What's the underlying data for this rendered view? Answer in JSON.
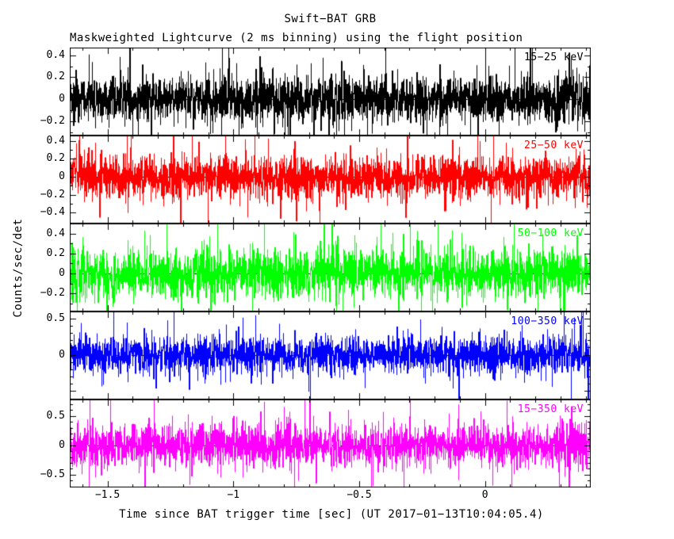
{
  "chart_data": {
    "type": "line",
    "title": "Swift−BAT GRB",
    "subtitle": "Maskweighted Lightcurve (2 ms binning) using the flight position",
    "xlabel": "Time since BAT trigger time [sec] (UT 2017−01−13T10:04:05.4)",
    "ylabel": "Counts/sec/det",
    "description": "Five stacked panels of mask-weighted Swift-BAT count-rate noise around the trigger time; zero-mean fluctuations in each energy band, dashed line at zero, no visible burst structure.",
    "bin_seconds": 0.002,
    "grid": false,
    "zero_line": "dashed",
    "xlim": [
      -1.65,
      0.42
    ],
    "x_minor_step": 0.1,
    "x_ticks": {
      "values": [
        -1.5,
        -1,
        -0.5,
        0
      ],
      "labels": [
        "−1.5",
        "−1",
        "−0.5",
        "0"
      ]
    },
    "panels": [
      {
        "label": "15−25 keV",
        "color": "#000000",
        "ylim": [
          -0.33,
          0.47
        ],
        "mean": 0,
        "noise_sigma": 0.11,
        "yticks": {
          "values": [
            0.4,
            0.2,
            0,
            -0.2
          ],
          "labels": [
            "0.4",
            "0.2",
            "0",
            "−0.2"
          ]
        }
      },
      {
        "label": "25−50 keV",
        "color": "#ff0000",
        "ylim": [
          -0.52,
          0.46
        ],
        "mean": 0,
        "noise_sigma": 0.12,
        "yticks": {
          "values": [
            0.4,
            0.2,
            0,
            -0.2,
            -0.4
          ],
          "labels": [
            "0.4",
            "0.2",
            "0",
            "−0.2",
            "−0.4"
          ]
        }
      },
      {
        "label": "50−100 keV",
        "color": "#00ff00",
        "ylim": [
          -0.38,
          0.5
        ],
        "mean": 0,
        "noise_sigma": 0.12,
        "yticks": {
          "values": [
            0.4,
            0.2,
            0,
            -0.2
          ],
          "labels": [
            "0.4",
            "0.2",
            "0",
            "−0.2"
          ]
        }
      },
      {
        "label": "100−350 keV",
        "color": "#0000ff",
        "ylim": [
          -0.62,
          0.6
        ],
        "mean": 0,
        "noise_sigma": 0.13,
        "yticks": {
          "values": [
            0.5,
            0
          ],
          "labels": [
            "0.5",
            "0"
          ]
        }
      },
      {
        "label": "15−350 keV",
        "color": "#ff00ff",
        "ylim": [
          -0.72,
          0.78
        ],
        "mean": 0,
        "noise_sigma": 0.18,
        "yticks": {
          "values": [
            0.5,
            0,
            -0.5
          ],
          "labels": [
            "0.5",
            "0",
            "−0.5"
          ]
        }
      }
    ]
  }
}
